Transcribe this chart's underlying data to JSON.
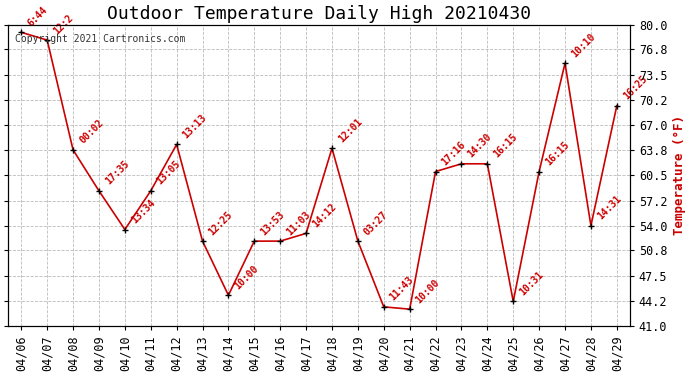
{
  "title": "Outdoor Temperature Daily High 20210430",
  "ylabel": "Temperature (°F)",
  "copyright_text": "Copyright 2021 Cartronics.com",
  "background_color": "#ffffff",
  "line_color": "#cc0000",
  "point_color": "#000000",
  "ylabel_color": "#cc0000",
  "dates": [
    "04/06",
    "04/07",
    "04/08",
    "04/09",
    "04/10",
    "04/11",
    "04/12",
    "04/13",
    "04/14",
    "04/15",
    "04/16",
    "04/17",
    "04/18",
    "04/19",
    "04/20",
    "04/21",
    "04/22",
    "04/23",
    "04/24",
    "04/25",
    "04/26",
    "04/27",
    "04/28",
    "04/29"
  ],
  "temps": [
    79.0,
    78.0,
    63.8,
    58.5,
    53.5,
    58.5,
    64.5,
    52.0,
    45.0,
    52.0,
    52.0,
    53.0,
    64.0,
    52.0,
    43.5,
    43.2,
    61.0,
    62.0,
    62.0,
    44.2,
    61.0,
    75.0,
    54.0,
    69.5
  ],
  "time_labels": [
    "6:44",
    "12:2",
    "00:02",
    "17:35",
    "13:34",
    "13:05",
    "13:13",
    "12:25",
    "10:00",
    "13:53",
    "11:03",
    "14:12",
    "12:01",
    "03:27",
    "11:43",
    "10:00",
    "17:16",
    "14:30",
    "16:15",
    "10:31",
    "16:15",
    "10:10",
    "14:31",
    "16:25"
  ],
  "ylim": [
    41.0,
    80.0
  ],
  "yticks": [
    41.0,
    44.2,
    47.5,
    50.8,
    54.0,
    57.2,
    60.5,
    63.8,
    67.0,
    70.2,
    73.5,
    76.8,
    80.0
  ],
  "title_fontsize": 13,
  "ylabel_fontsize": 9,
  "tick_fontsize": 8.5,
  "annotation_fontsize": 7,
  "grid_color": "#bbbbbb",
  "grid_style": "--"
}
